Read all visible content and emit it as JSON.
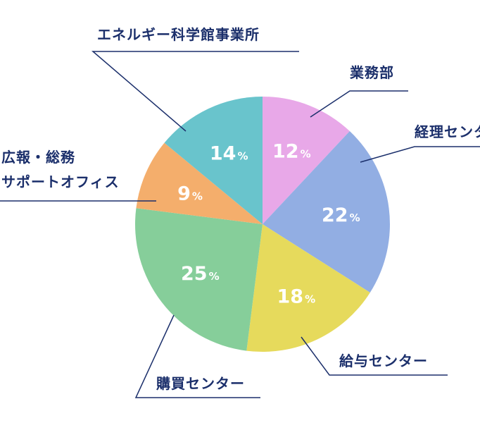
{
  "chart_data": {
    "type": "pie",
    "unit": "%",
    "slices": [
      {
        "label": "業務部",
        "value": 12,
        "color": "#e8a8e8"
      },
      {
        "label": "経理センター",
        "value": 22,
        "color": "#92aee3"
      },
      {
        "label": "給与センター",
        "value": 18,
        "color": "#e6da5c"
      },
      {
        "label": "購買センター",
        "value": 25,
        "color": "#86ce9a"
      },
      {
        "label": "広報・総務サポートオフィス",
        "label_lines": [
          "広報・総務",
          "サポートオフィス"
        ],
        "value": 9,
        "color": "#f4ae6c"
      },
      {
        "label": "エネルギー科学館事業所",
        "value": 14,
        "color": "#69c4cc"
      }
    ],
    "label_color": "#1b2f6b"
  }
}
